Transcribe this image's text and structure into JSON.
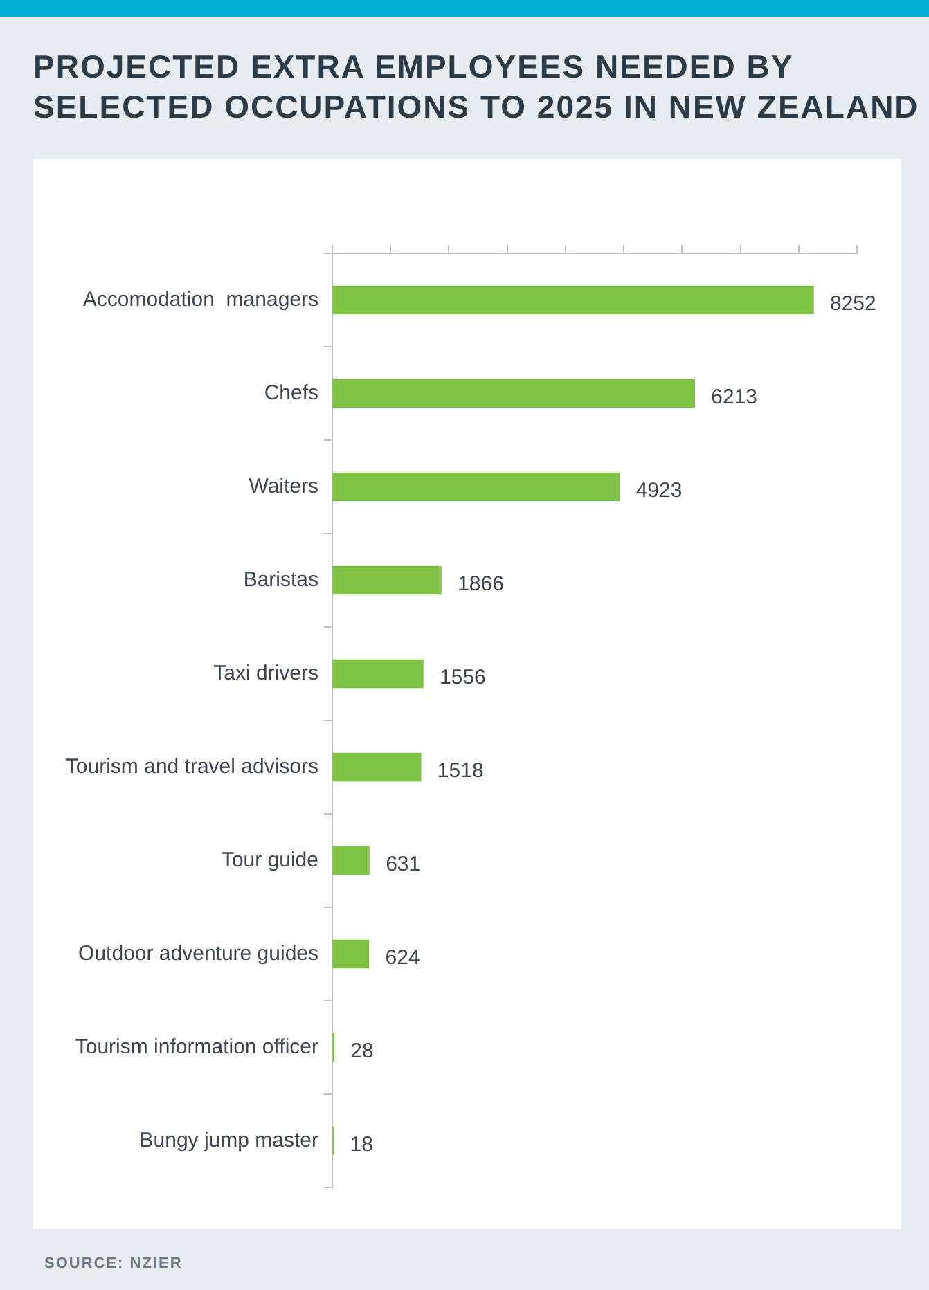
{
  "chart_data": {
    "type": "bar",
    "orientation": "horizontal",
    "title": "PROJECTED EXTRA EMPLOYEES NEEDED BY SELECTED OCCUPATIONS TO 2025 IN NEW ZEALAND",
    "categories": [
      "Accomodation  managers",
      "Chefs",
      "Waiters",
      "Baristas",
      "Taxi drivers",
      "Tourism and travel advisors",
      "Tour guide",
      "Outdoor adventure guides",
      "Tourism information officer",
      "Bungy jump master"
    ],
    "values": [
      8252,
      6213,
      4923,
      1866,
      1556,
      1518,
      631,
      624,
      28,
      18
    ],
    "color": "#7dc242",
    "data_labels": true,
    "tick_labels": "y",
    "grid": false,
    "legend": false,
    "xlim": [
      0,
      9000
    ],
    "xticks": [
      {
        "value": 0,
        "label": null
      },
      {
        "value": 1000,
        "label": null
      },
      {
        "value": 2000,
        "label": null
      },
      {
        "value": 3000,
        "label": null
      },
      {
        "value": 4000,
        "label": null
      },
      {
        "value": 5000,
        "label": null
      },
      {
        "value": 6000,
        "label": null
      },
      {
        "value": 7000,
        "label": null
      },
      {
        "value": 8000,
        "label": null
      },
      {
        "value": 9000,
        "label": null
      }
    ],
    "annotations": [
      "SOURCE: NZIER"
    ]
  }
}
